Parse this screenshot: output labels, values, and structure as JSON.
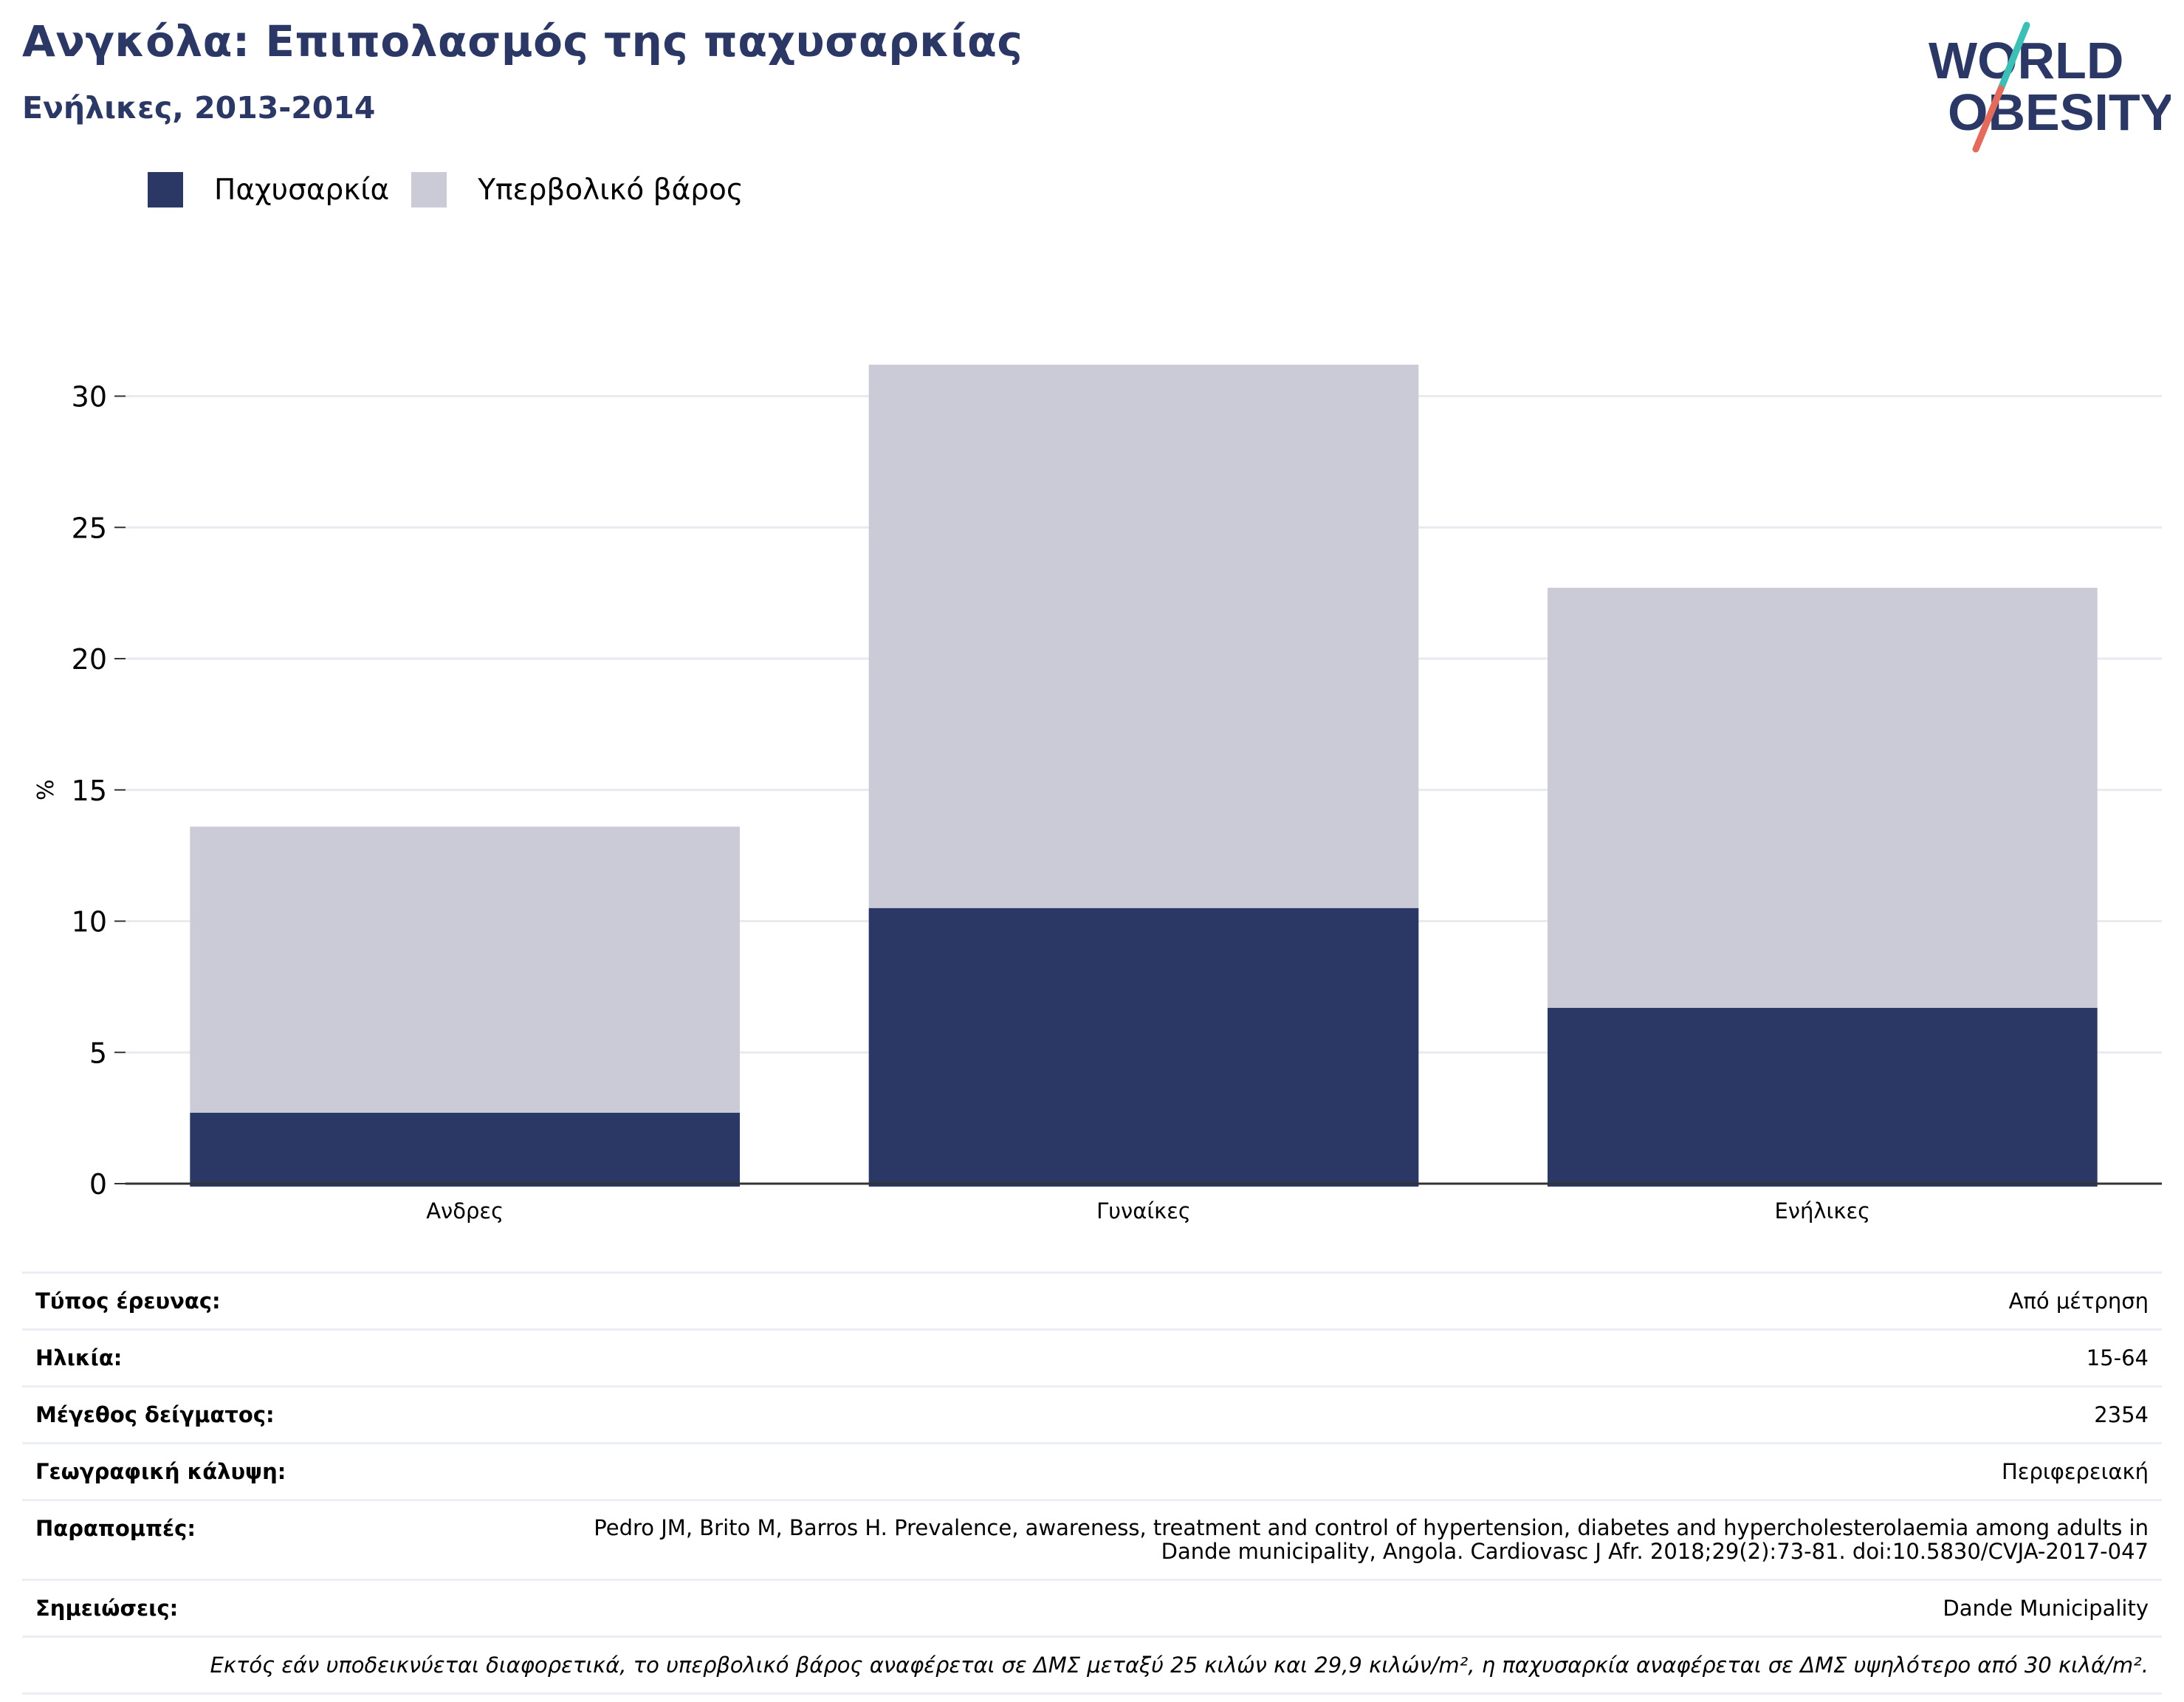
{
  "header": {
    "title": "Ανγκόλα: Επιπολασμός της παχυσαρκίας",
    "subtitle": "Ενήλικες, 2013-2014"
  },
  "logo": {
    "line1": "WORLD",
    "line2": "OBESITY"
  },
  "colors": {
    "obesity": "#2b3764",
    "overweight": "#cacbd7",
    "title": "#2b3764",
    "logo_teal": "#3bbfb7",
    "logo_coral": "#e46b5b"
  },
  "legend": [
    {
      "label": "Παχυσαρκία",
      "color": "#2b3764"
    },
    {
      "label": "Υπερβολικό βάρος",
      "color": "#cacbd7"
    }
  ],
  "chart_data": {
    "type": "bar",
    "stacked": true,
    "categories": [
      "Ανδρες",
      "Γυναίκες",
      "Ενήλικες"
    ],
    "series": [
      {
        "name": "Παχυσαρκία",
        "values": [
          2.7,
          10.5,
          6.7
        ]
      },
      {
        "name": "Υπερβολικό βάρος",
        "values": [
          10.9,
          20.7,
          16.0
        ]
      }
    ],
    "ylabel": "%",
    "xlabel": "",
    "ylim": [
      0,
      34
    ],
    "yticks": [
      0,
      5,
      10,
      15,
      20,
      25,
      30
    ],
    "grid": true,
    "legend_position": "top-left"
  },
  "info": [
    {
      "label": "Τύπος έρευνας:",
      "value": "Από μέτρηση"
    },
    {
      "label": "Ηλικία:",
      "value": "15-64"
    },
    {
      "label": "Μέγεθος δείγματος:",
      "value": "2354"
    },
    {
      "label": "Γεωγραφική κάλυψη:",
      "value": "Περιφερειακή"
    },
    {
      "label": "Παραπομπές:",
      "value": "Pedro JM, Brito M, Barros H. Prevalence, awareness, treatment and control of hypertension, diabetes and hypercholesterolaemia among adults in Dande municipality, Angola. Cardiovasc J Afr. 2018;29(2):73-81. doi:10.5830/CVJA-2017-047"
    },
    {
      "label": "Σημειώσεις:",
      "value": "Dande Municipality"
    }
  ],
  "footnote": "Εκτός εάν υποδεικνύεται διαφορετικά, το υπερβολικό βάρος αναφέρεται σε ΔΜΣ μεταξύ 25 κιλών και 29,9 κιλών/m², η παχυσαρκία αναφέρεται σε ΔΜΣ υψηλότερο από 30 κιλά/m²."
}
